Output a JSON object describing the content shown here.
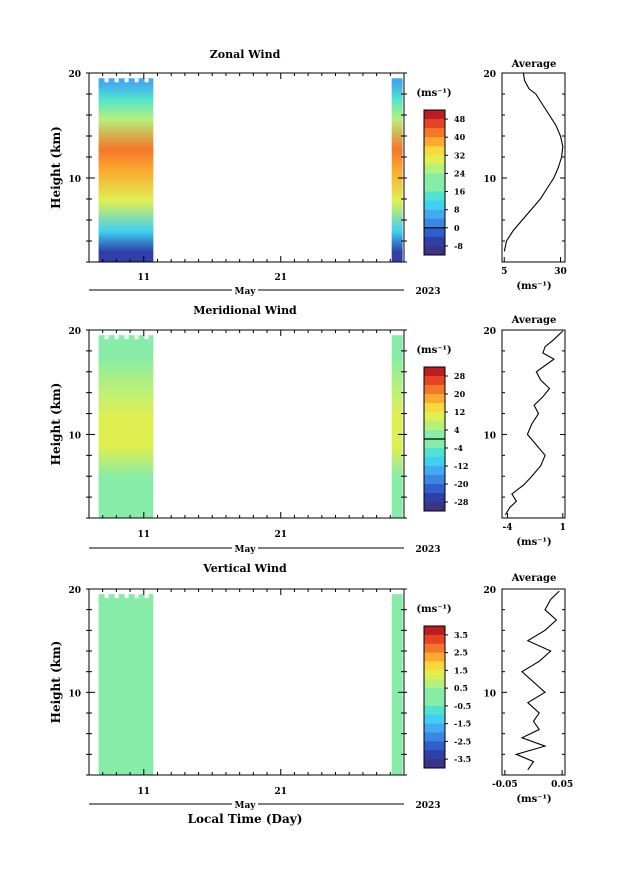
{
  "figure": {
    "x_axis_title": "Local Time (Day)",
    "month_label": "May",
    "year_label": "2023",
    "x_tick_labels": [
      "11",
      "21"
    ]
  },
  "colors": {
    "palette": [
      "#3b3486",
      "#2f3fa8",
      "#2f5fcc",
      "#3a86e0",
      "#43aaf0",
      "#3fd0f0",
      "#50e2d0",
      "#86eca8",
      "#b4f07c",
      "#dfef52",
      "#f8d83a",
      "#fbaa2f",
      "#f4762a",
      "#e34426",
      "#bb1d21"
    ],
    "zero_line": "#000000"
  },
  "chart_data": [
    {
      "type": "heatmap",
      "title": "Zonal Wind",
      "ylabel": "Height (km)",
      "ylim": [
        2,
        20
      ],
      "y_ticks": [
        "10",
        "20"
      ],
      "x_ticks": [
        "11",
        "21"
      ],
      "colorbar": {
        "unit": "(ms⁻¹)",
        "ticks": [
          "48",
          "40",
          "32",
          "24",
          "16",
          "8",
          "0",
          "-8"
        ],
        "zero_tick": "0",
        "range": [
          -12,
          52
        ]
      },
      "data_windows": [
        {
          "start_day": 7.7,
          "end_day": 11.7
        },
        {
          "start_day": 29.1,
          "end_day": 29.9
        }
      ],
      "field": [
        {
          "height": 3,
          "value": -4
        },
        {
          "height": 5,
          "value": 10
        },
        {
          "height": 8,
          "value": 28
        },
        {
          "height": 11,
          "value": 38
        },
        {
          "height": 13,
          "value": 40
        },
        {
          "height": 16,
          "value": 26
        },
        {
          "height": 18,
          "value": 14
        },
        {
          "height": 19.5,
          "value": 8
        }
      ],
      "average": {
        "title": "Average",
        "xlabel": "(ms⁻¹)",
        "x_ticks": [
          "5",
          "30"
        ],
        "xlim": [
          4,
          32
        ],
        "y_ticks": [
          "10",
          "20"
        ],
        "ylim": [
          2,
          20
        ],
        "profile": {
          "x": [
            5,
            6,
            9,
            13,
            17,
            21,
            24,
            27,
            29,
            30.5,
            31,
            30,
            28,
            25,
            22,
            19,
            16,
            14,
            13.5
          ],
          "y": [
            3,
            4,
            5,
            6,
            7,
            8,
            9,
            10,
            11,
            12,
            13,
            14,
            15,
            16,
            17,
            18,
            18.5,
            19.3,
            20
          ]
        }
      }
    },
    {
      "type": "heatmap",
      "title": "Meridional Wind",
      "ylabel": "Height (km)",
      "ylim": [
        2,
        20
      ],
      "y_ticks": [
        "10",
        "20"
      ],
      "x_ticks": [
        "11",
        "21"
      ],
      "colorbar": {
        "unit": "(ms⁻¹)",
        "ticks": [
          "28",
          "20",
          "12",
          "4",
          "-4",
          "-12",
          "-20",
          "-28"
        ],
        "zero_tick": "0",
        "range": [
          -32,
          32
        ]
      },
      "data_windows": [
        {
          "start_day": 7.7,
          "end_day": 11.7
        },
        {
          "start_day": 29.1,
          "end_day": 29.9
        }
      ],
      "field": [
        {
          "height": 3,
          "value": -2
        },
        {
          "height": 6,
          "value": 2
        },
        {
          "height": 9,
          "value": 10
        },
        {
          "height": 12,
          "value": 8
        },
        {
          "height": 15,
          "value": 3
        },
        {
          "height": 18,
          "value": -2
        }
      ],
      "average": {
        "title": "Average",
        "xlabel": "(ms⁻¹)",
        "x_ticks": [
          "-4",
          "1"
        ],
        "xlim": [
          -4.5,
          1.2
        ],
        "y_ticks": [
          "10",
          "20"
        ],
        "ylim": [
          2,
          20
        ],
        "profile": {
          "x": [
            -4.2,
            -3.8,
            -3.2,
            -3.6,
            -2.5,
            -1.8,
            -1.0,
            -0.6,
            -1.4,
            -2.2,
            -1.8,
            -1.2,
            -1.6,
            -0.8,
            -0.2,
            -1.0,
            -1.4,
            -0.6,
            0.2,
            -0.8,
            -0.6,
            0.1,
            0.6,
            1.0
          ],
          "y": [
            2.3,
            3.0,
            3.6,
            4.3,
            5.2,
            6.0,
            7.0,
            8.0,
            9.0,
            10.0,
            11.0,
            12.0,
            12.8,
            13.6,
            14.4,
            15.2,
            16.0,
            16.6,
            17.2,
            17.8,
            18.4,
            19.0,
            19.5,
            19.9
          ]
        }
      }
    },
    {
      "type": "heatmap",
      "title": "Vertical Wind",
      "ylabel": "Height (km)",
      "ylim": [
        2,
        20
      ],
      "y_ticks": [
        "10",
        "20"
      ],
      "x_ticks": [
        "11",
        "21"
      ],
      "colorbar": {
        "unit": "(ms⁻¹)",
        "ticks": [
          "3.5",
          "2.5",
          "1.5",
          "0.5",
          "-0.5",
          "-1.5",
          "-2.5",
          "-3.5"
        ],
        "zero_tick": "",
        "range": [
          -4,
          4
        ]
      },
      "data_windows": [
        {
          "start_day": 7.7,
          "end_day": 11.7
        },
        {
          "start_day": 29.1,
          "end_day": 29.9
        }
      ],
      "field": [
        {
          "height": 4,
          "value": 0.1
        },
        {
          "height": 10,
          "value": 0
        },
        {
          "height": 16,
          "value": 0.1
        }
      ],
      "average": {
        "title": "Average",
        "xlabel": "(ms⁻¹)",
        "x_ticks": [
          "-0.05",
          "0.05"
        ],
        "xlim": [
          -0.055,
          0.055
        ],
        "y_ticks": [
          "10",
          "20"
        ],
        "ylim": [
          2,
          20
        ],
        "profile": {
          "x": [
            -0.01,
            0.0,
            -0.03,
            0.02,
            -0.02,
            0.01,
            0.0,
            0.01,
            -0.01,
            0.02,
            0.0,
            -0.02,
            0.01,
            0.03,
            -0.01,
            0.02,
            0.04,
            0.02,
            0.03,
            0.045
          ],
          "y": [
            2.5,
            3.3,
            4.0,
            4.8,
            5.6,
            6.4,
            7.2,
            8.0,
            9.0,
            10.0,
            11.0,
            12.0,
            13.0,
            14.0,
            15.0,
            16.0,
            17.0,
            18.0,
            19.0,
            19.8
          ]
        }
      }
    }
  ]
}
